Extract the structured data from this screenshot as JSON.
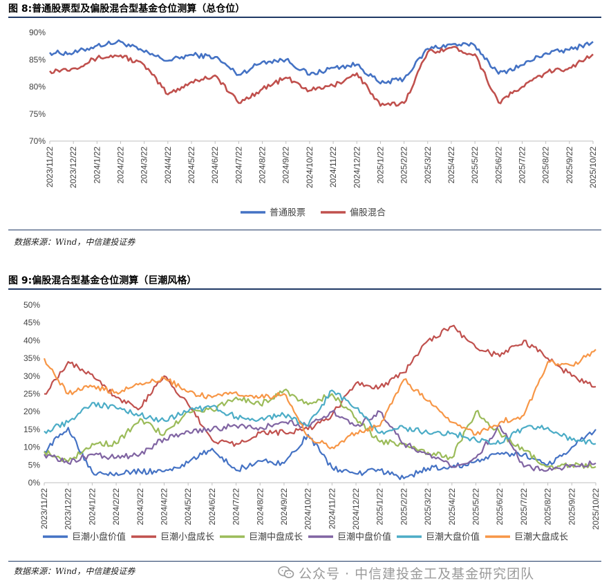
{
  "figure8": {
    "title": "图 8:普通股票型及偏股混合型基金仓位测算（总仓位）",
    "source": "数据来源：Wind，中信建投证券"
  },
  "figure9": {
    "title": "图 9:偏股混合型基金仓位测算（巨潮风格）",
    "source": "数据来源：Wind，中信建投证券"
  },
  "watermark": "公众号 · 中信建投金工及基金研究团队",
  "chart_data": [
    {
      "type": "line",
      "title": "图 8:普通股票型及偏股混合型基金仓位测算（总仓位）",
      "x_labels": [
        "2023/11/22",
        "2023/12/22",
        "2024/1/22",
        "2024/2/22",
        "2024/3/22",
        "2024/4/22",
        "2024/5/22",
        "2024/6/22",
        "2024/7/22",
        "2024/8/22",
        "2024/9/22",
        "2024/10/22",
        "2024/11/22",
        "2024/12/22",
        "2025/1/22",
        "2025/2/22",
        "2025/3/22",
        "2025/4/22",
        "2025/5/22",
        "2025/6/22",
        "2025/7/22",
        "2025/8/22",
        "2025/9/22",
        "2025/10/22"
      ],
      "y_ticks": [
        "70%",
        "75%",
        "80%",
        "85%",
        "90%"
      ],
      "ylim": [
        70,
        90
      ],
      "legend_position": "bottom",
      "series": [
        {
          "name": "普通股票",
          "color": "#4472c4",
          "values": [
            86.3,
            86.2,
            87.6,
            88.3,
            86.4,
            84.8,
            85.9,
            85.5,
            82.2,
            84.6,
            85.0,
            82.2,
            83.5,
            84.1,
            80.6,
            81.5,
            87.0,
            87.8,
            87.6,
            82.4,
            84.0,
            86.2,
            86.8,
            88.3
          ]
        },
        {
          "name": "偏股混合",
          "color": "#c0504d",
          "values": [
            82.9,
            83.4,
            85.3,
            85.8,
            84.0,
            78.6,
            80.9,
            82.1,
            77.0,
            79.6,
            81.7,
            79.3,
            80.2,
            82.5,
            76.5,
            77.0,
            86.4,
            87.2,
            86.0,
            77.1,
            80.0,
            82.6,
            83.5,
            86.0
          ]
        }
      ]
    },
    {
      "type": "line",
      "title": "图 9:偏股混合型基金仓位测算（巨潮风格）",
      "x_labels": [
        "2023/11/22",
        "2023/12/22",
        "2024/1/22",
        "2024/2/22",
        "2024/3/22",
        "2024/4/22",
        "2024/5/22",
        "2024/6/22",
        "2024/7/22",
        "2024/8/22",
        "2024/9/22",
        "2024/10/22",
        "2024/11/22",
        "2024/12/22",
        "2025/1/22",
        "2025/2/22",
        "2025/3/22",
        "2025/4/22",
        "2025/5/22",
        "2025/6/22",
        "2025/7/22",
        "2025/8/22",
        "2025/9/22",
        "2025/10/22"
      ],
      "y_ticks": [
        "0%",
        "5%",
        "10%",
        "15%",
        "20%",
        "25%",
        "30%",
        "35%",
        "40%",
        "45%",
        "50%"
      ],
      "ylim": [
        0,
        50
      ],
      "legend_position": "bottom",
      "series": [
        {
          "name": "巨潮小盘价值",
          "color": "#4472c4",
          "values": [
            8.8,
            15.5,
            3.0,
            2.8,
            3.1,
            3.2,
            5.6,
            9.6,
            3.5,
            6.1,
            5.5,
            13.5,
            4.2,
            2.5,
            3.5,
            1.2,
            4.1,
            4.3,
            6.0,
            8.0,
            8.0,
            5.0,
            10.0,
            15.0
          ]
        },
        {
          "name": "巨潮小盘成长",
          "color": "#c0504d",
          "values": [
            25.0,
            34.0,
            30.5,
            24.0,
            21.0,
            30.0,
            22.0,
            12.0,
            11.0,
            14.0,
            14.2,
            15.0,
            19.0,
            28.0,
            27.0,
            31.0,
            40.0,
            44.0,
            38.0,
            35.5,
            40.0,
            35.0,
            30.0,
            27.0
          ]
        },
        {
          "name": "巨潮中盘成长",
          "color": "#9bbb59",
          "values": [
            8.8,
            6.0,
            11.0,
            11.0,
            18.0,
            13.5,
            20.0,
            20.5,
            24.0,
            22.0,
            26.0,
            22.0,
            25.0,
            18.0,
            11.5,
            11.0,
            8.5,
            7.0,
            20.0,
            14.0,
            9.0,
            4.5,
            5.0,
            4.5
          ]
        },
        {
          "name": "巨潮中盘价值",
          "color": "#8064a2",
          "values": [
            8.0,
            5.5,
            8.0,
            7.0,
            8.0,
            12.5,
            14.5,
            15.0,
            16.0,
            15.5,
            17.0,
            16.0,
            20.0,
            16.0,
            20.0,
            11.0,
            8.0,
            4.5,
            7.0,
            16.0,
            4.5,
            3.5,
            5.0,
            5.5
          ]
        },
        {
          "name": "巨潮大盘价值",
          "color": "#4bacc6",
          "values": [
            14.5,
            17.0,
            22.5,
            21.0,
            19.0,
            17.5,
            20.0,
            21.5,
            18.5,
            18.0,
            19.0,
            16.0,
            26.0,
            21.0,
            14.0,
            15.5,
            14.0,
            14.0,
            12.0,
            11.0,
            15.5,
            15.5,
            12.0,
            11.0
          ]
        },
        {
          "name": "巨潮大盘成长",
          "color": "#f79646",
          "values": [
            35.0,
            25.0,
            27.0,
            25.5,
            28.0,
            29.5,
            25.5,
            24.0,
            25.5,
            24.0,
            25.0,
            13.0,
            10.0,
            14.0,
            16.0,
            29.0,
            23.0,
            17.0,
            13.5,
            17.0,
            19.0,
            34.0,
            33.0,
            37.5
          ]
        }
      ]
    }
  ]
}
